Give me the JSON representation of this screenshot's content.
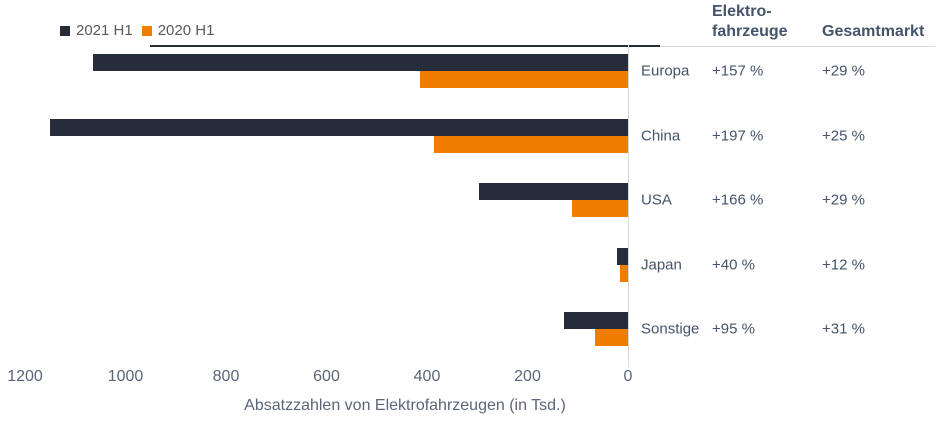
{
  "legend": {
    "items": [
      {
        "label": "2021 H1",
        "color": "#262c38"
      },
      {
        "label": "2020 H1",
        "color": "#ef7d00"
      }
    ]
  },
  "table": {
    "header_ev_line1": "Elektro-",
    "header_ev_line2": "fahrzeuge",
    "header_total": "Gesamtmarkt",
    "rows": [
      {
        "label": "Europa",
        "ev_growth": "+157 %",
        "total_growth": "+29 %"
      },
      {
        "label": "China",
        "ev_growth": "+197 %",
        "total_growth": "+25 %"
      },
      {
        "label": "USA",
        "ev_growth": "+166 %",
        "total_growth": "+29 %"
      },
      {
        "label": "Japan",
        "ev_growth": "+40 %",
        "total_growth": "+12 %"
      },
      {
        "label": "Sonstige",
        "ev_growth": "+95 %",
        "total_growth": "+31 %"
      }
    ]
  },
  "axis": {
    "tick_labels": [
      "1200",
      "1000",
      "800",
      "600",
      "400",
      "200",
      "0"
    ]
  },
  "chart_data": {
    "type": "bar",
    "orientation": "horizontal",
    "categories": [
      "Europa",
      "China",
      "USA",
      "Japan",
      "Sonstige"
    ],
    "series": [
      {
        "name": "2021 H1",
        "color": "#262c38",
        "values": [
          1065,
          1150,
          297,
          22,
          127
        ]
      },
      {
        "name": "2020 H1",
        "color": "#ef7d00",
        "values": [
          414,
          387,
          111,
          16,
          66
        ]
      }
    ],
    "title": "",
    "xlabel": "Absatzzahlen von Elektrofahrzeugen (in Tsd.)",
    "ylabel": "",
    "xlim": [
      1200,
      0
    ],
    "x_ticks": [
      1200,
      1000,
      800,
      600,
      400,
      200,
      0
    ],
    "x_axis_reversed": true,
    "grid": false,
    "legend_position": "top-left",
    "annotations": {
      "ev_growth": [
        "+157 %",
        "+197 %",
        "+166 %",
        "+40 %",
        "+95 %"
      ],
      "total_growth": [
        "+29 %",
        "+25 %",
        "+29 %",
        "+12 %",
        "+31 %"
      ]
    }
  },
  "colors": {
    "bar_2021": "#262c38",
    "bar_2020": "#ef7d00",
    "label": "#44546a",
    "tick": "#5b6577",
    "gridline": "#d9d9d9",
    "legend_text": "#595959"
  }
}
